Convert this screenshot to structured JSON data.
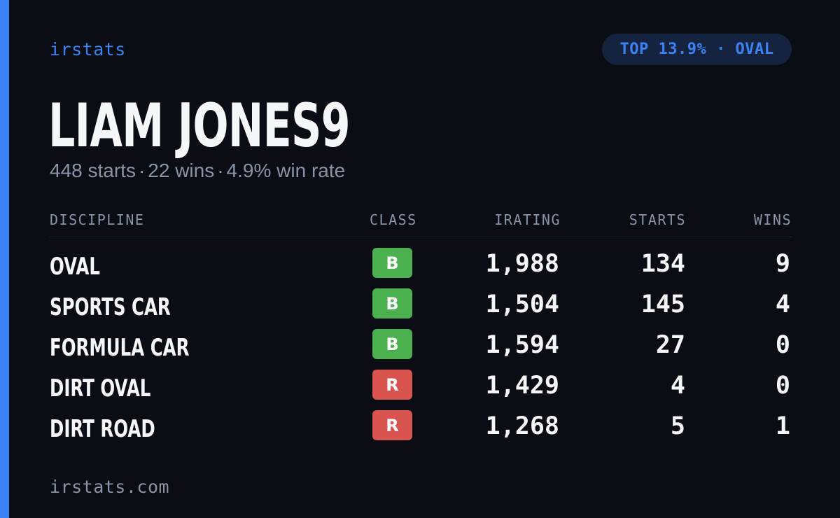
{
  "brand": "irstats",
  "badge": "TOP 13.9% · OVAL",
  "driver": {
    "name": "LIAM JONES9",
    "starts_text": "448 starts",
    "wins_text": "22 wins",
    "winrate_text": "4.9% win rate",
    "separator": "·"
  },
  "table": {
    "headers": {
      "discipline": "DISCIPLINE",
      "class": "CLASS",
      "irating": "IRATING",
      "starts": "STARTS",
      "wins": "WINS"
    },
    "rows": [
      {
        "discipline": "OVAL",
        "class": "B",
        "class_color": "#4caf50",
        "irating": "1,988",
        "starts": "134",
        "wins": "9"
      },
      {
        "discipline": "SPORTS CAR",
        "class": "B",
        "class_color": "#4caf50",
        "irating": "1,504",
        "starts": "145",
        "wins": "4"
      },
      {
        "discipline": "FORMULA CAR",
        "class": "B",
        "class_color": "#4caf50",
        "irating": "1,594",
        "starts": "27",
        "wins": "0"
      },
      {
        "discipline": "DIRT OVAL",
        "class": "R",
        "class_color": "#d9534f",
        "irating": "1,429",
        "starts": "4",
        "wins": "0"
      },
      {
        "discipline": "DIRT ROAD",
        "class": "R",
        "class_color": "#d9534f",
        "irating": "1,268",
        "starts": "5",
        "wins": "1"
      }
    ]
  },
  "footer": "irstats.com",
  "colors": {
    "accent": "#3b82f6",
    "background": "#0a0d14",
    "muted_text": "#8a94a6",
    "class_b": "#4caf50",
    "class_r": "#d9534f"
  }
}
